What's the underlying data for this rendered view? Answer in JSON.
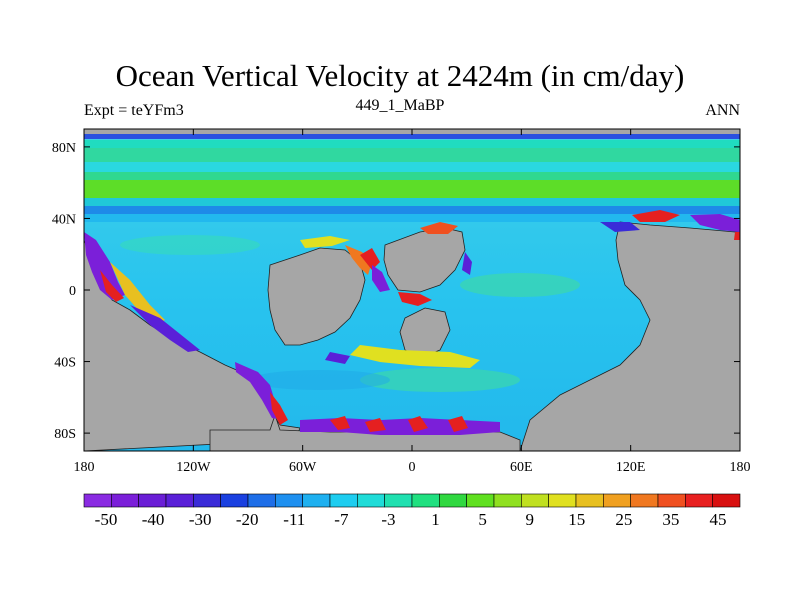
{
  "chart_data": {
    "type": "heatmap",
    "title": "Ocean Vertical Velocity at 2424m (in cm/day)",
    "left_label": "Expt = teYFm3",
    "center_label": "449_1_MaBP",
    "right_label": "ANN",
    "x_ticks": [
      {
        "value": -180,
        "label": "180"
      },
      {
        "value": -120,
        "label": "120W"
      },
      {
        "value": -60,
        "label": "60W"
      },
      {
        "value": 0,
        "label": "0"
      },
      {
        "value": 60,
        "label": "60E"
      },
      {
        "value": 120,
        "label": "120E"
      },
      {
        "value": 180,
        "label": "180"
      }
    ],
    "y_ticks": [
      {
        "value": 80,
        "label": "80N"
      },
      {
        "value": 40,
        "label": "40N"
      },
      {
        "value": 0,
        "label": "0"
      },
      {
        "value": -40,
        "label": "40S"
      },
      {
        "value": -80,
        "label": "80S"
      }
    ],
    "xlim": [
      -180,
      180
    ],
    "ylim": [
      -90,
      90
    ],
    "colorbar": {
      "labels": [
        "-50",
        "-40",
        "-30",
        "-20",
        "-11",
        "-7",
        "-3",
        "1",
        "5",
        "9",
        "15",
        "25",
        "35",
        "45"
      ],
      "colors": [
        "#8a2be2",
        "#7b1fd9",
        "#6a1ed6",
        "#5a20d8",
        "#3a2bd8",
        "#1a40e0",
        "#1e6ee8",
        "#1e90f0",
        "#1eb0f0",
        "#1ecdf0",
        "#20dcd8",
        "#20e0b0",
        "#20e080",
        "#30d840",
        "#60e020",
        "#90e020",
        "#c0e020",
        "#e0e020",
        "#e8c020",
        "#f0a020",
        "#f07820",
        "#f05020",
        "#e82020",
        "#d81010"
      ]
    },
    "fields": {
      "land_color": "#a6a6a6",
      "ocean_background": "#33ccee",
      "arctic_band": "#2060e0",
      "northern_band": "#50dd30",
      "upwelling_color": "#e52020",
      "downwelling_color": "#7b1fd9"
    }
  }
}
